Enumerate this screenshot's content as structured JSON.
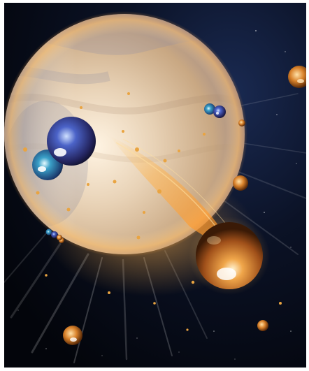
{
  "scene": {
    "subject": "planet-with-particle-stream",
    "icons": [
      "planet",
      "molecule",
      "droplet",
      "particle-stream",
      "stars"
    ],
    "colors": {
      "space": "#05070f",
      "space_edge": "#0d1830",
      "planet_light": "#f4e6d2",
      "planet_mid": "#c9a883",
      "planet_shadow": "#7a6a66",
      "glow": "#ffb24a",
      "droplet": "#d9822b",
      "droplet_dark": "#5a2a08",
      "molecule_blue": "#3a62b8",
      "molecule_violet": "#4a3f9e",
      "molecule_cyan": "#3aa0c8"
    }
  }
}
